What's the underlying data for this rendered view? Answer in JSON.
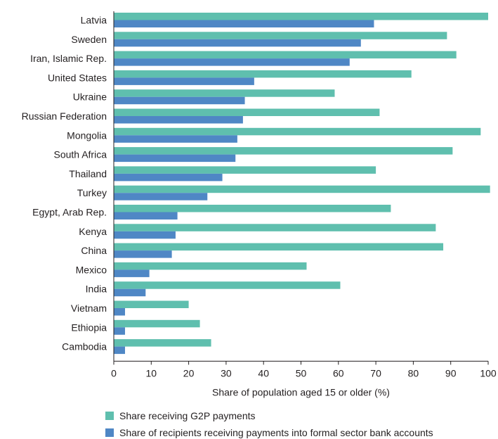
{
  "chart_data": {
    "type": "bar",
    "orientation": "horizontal",
    "categories": [
      "Latvia",
      "Sweden",
      "Iran, Islamic Rep.",
      "United States",
      "Ukraine",
      "Russian Federation",
      "Mongolia",
      "South Africa",
      "Thailand",
      "Turkey",
      "Egypt, Arab Rep.",
      "Kenya",
      "China",
      "Mexico",
      "India",
      "Vietnam",
      "Ethiopia",
      "Cambodia"
    ],
    "series": [
      {
        "name": "Share receiving G2P payments",
        "color": "#5fbfae",
        "values": [
          100,
          89,
          91.5,
          79.5,
          59,
          71,
          98,
          90.5,
          70,
          100.5,
          74,
          86,
          88,
          51.5,
          60.5,
          20,
          23,
          26
        ]
      },
      {
        "name": "Share of recipients receiving payments into formal sector bank accounts",
        "color": "#4f87c5",
        "values": [
          69.5,
          66,
          63,
          37.5,
          35,
          34.5,
          33,
          32.5,
          29,
          25,
          17,
          16.5,
          15.5,
          9.5,
          8.5,
          3,
          3,
          3
        ]
      }
    ],
    "xlabel": "Share of population aged 15 or older (%)",
    "xlim": [
      0,
      100
    ],
    "xticks": [
      "0",
      "10",
      "20",
      "30",
      "40",
      "50",
      "60",
      "70",
      "80",
      "90",
      "100"
    ],
    "grid": false,
    "legend_position": "bottom-left"
  }
}
